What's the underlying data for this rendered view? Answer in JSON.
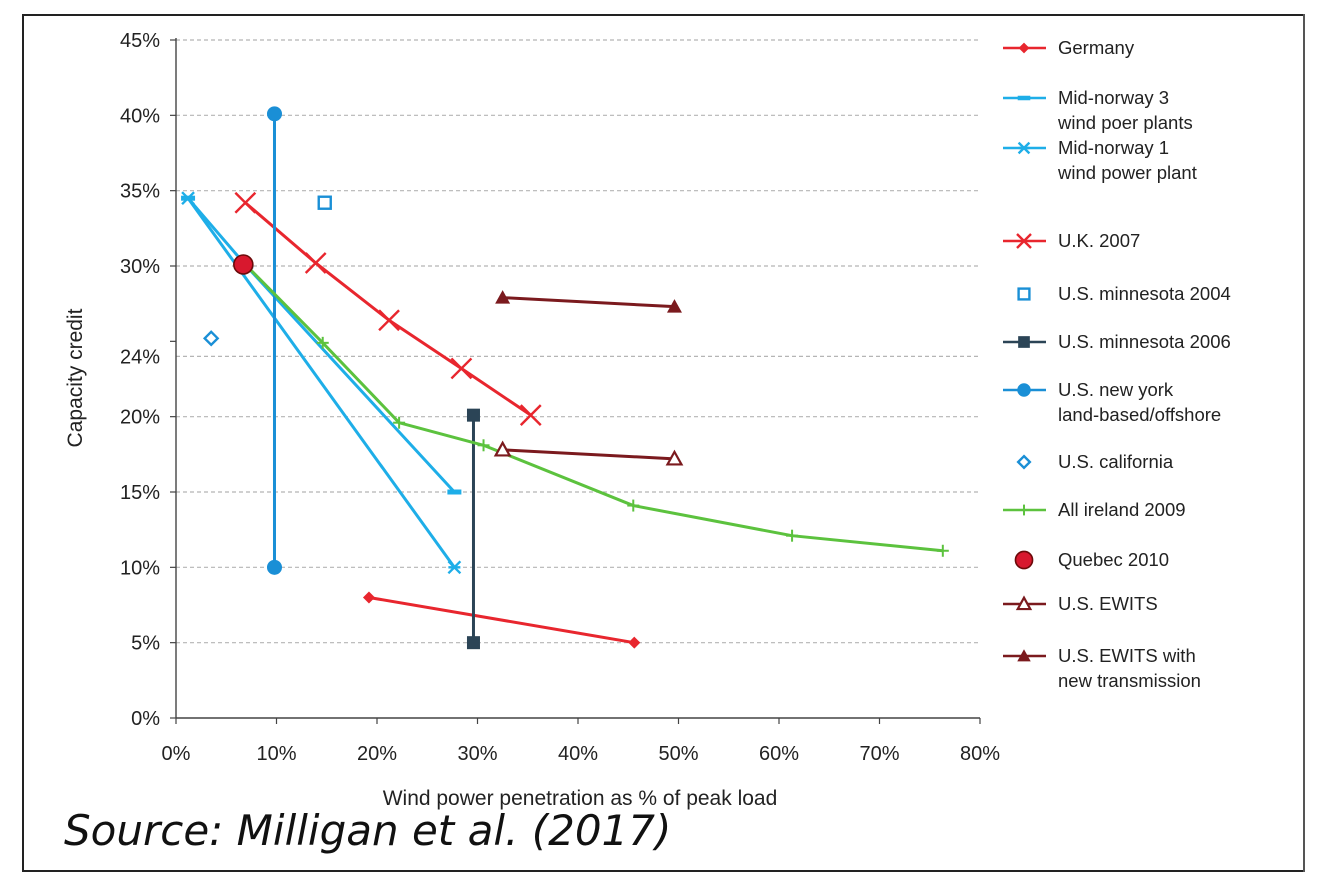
{
  "chart_data": {
    "type": "line",
    "xlabel": "Wind power penetration as % of peak load",
    "ylabel": "Capacity credit",
    "xlim": [
      0,
      80
    ],
    "ylim": [
      0,
      45
    ],
    "x_ticks": [
      0,
      10,
      20,
      30,
      40,
      50,
      60,
      70,
      80
    ],
    "x_tick_labels": [
      "0%",
      "10%",
      "20%",
      "30%",
      "40%",
      "50%",
      "60%",
      "70%",
      "80%"
    ],
    "y_ticks": [
      0,
      5,
      10,
      15,
      20,
      24,
      30,
      35,
      40,
      45
    ],
    "y_tick_labels": [
      "0%",
      "5%",
      "10%",
      "15%",
      "20%",
      "24%",
      "30%",
      "35%",
      "40%",
      "45%"
    ],
    "grid": "horizontal dashed",
    "legend_position": "right",
    "series": [
      {
        "name": "Germany",
        "color": "#e8262e",
        "marker": "diamond-filled",
        "line": true,
        "points": [
          [
            19.2,
            8.0
          ],
          [
            45.6,
            5.0
          ]
        ]
      },
      {
        "name": "Mid-norway 3\nwind poer plants",
        "color": "#1eaee8",
        "marker": "dash",
        "line": true,
        "points": [
          [
            1.2,
            34.5
          ],
          [
            7.0,
            30.0
          ],
          [
            27.7,
            15.0
          ]
        ]
      },
      {
        "name": "Mid-norway 1\nwind power plant",
        "color": "#1eaee8",
        "marker": "star",
        "line": true,
        "points": [
          [
            1.2,
            34.5
          ],
          [
            27.7,
            10.0
          ]
        ]
      },
      {
        "name": "U.K. 2007",
        "color": "#e8262e",
        "marker": "x",
        "line": true,
        "points": [
          [
            6.9,
            34.2
          ],
          [
            13.9,
            30.2
          ],
          [
            21.2,
            26.4
          ],
          [
            28.4,
            23.2
          ],
          [
            35.3,
            20.1
          ]
        ]
      },
      {
        "name": "U.S. minnesota 2004",
        "color": "#1a8fd6",
        "marker": "square-open",
        "line": false,
        "points": [
          [
            14.8,
            34.2
          ]
        ]
      },
      {
        "name": "U.S. minnesota 2006",
        "color": "#2b4456",
        "marker": "square-filled",
        "line": true,
        "points": [
          [
            29.6,
            20.1
          ],
          [
            29.6,
            5.0
          ]
        ]
      },
      {
        "name": "U.S. new york\nland-based/offshore",
        "color": "#1a8fd6",
        "marker": "circle-filled",
        "line": true,
        "points": [
          [
            9.8,
            40.1
          ],
          [
            9.8,
            10.0
          ]
        ]
      },
      {
        "name": "U.S. california",
        "color": "#1a8fd6",
        "marker": "diamond-open",
        "line": false,
        "points": [
          [
            3.5,
            25.2
          ]
        ]
      },
      {
        "name": "All ireland 2009",
        "color": "#5cc23e",
        "marker": "plus",
        "line": true,
        "points": [
          [
            6.9,
            30.1
          ],
          [
            14.6,
            24.9
          ],
          [
            22.2,
            19.6
          ],
          [
            30.6,
            18.1
          ],
          [
            45.5,
            14.1
          ],
          [
            61.3,
            12.1
          ],
          [
            76.3,
            11.1
          ]
        ]
      },
      {
        "name": "Quebec 2010",
        "color": "#d8182e",
        "marker": "circle-big",
        "line": false,
        "points": [
          [
            6.7,
            30.1
          ]
        ]
      },
      {
        "name": "U.S. EWITS",
        "color": "#7b1a1e",
        "marker": "triangle-open",
        "line": true,
        "points": [
          [
            32.5,
            17.8
          ],
          [
            49.6,
            17.2
          ]
        ]
      },
      {
        "name": "U.S. EWITS with\nnew transmission",
        "color": "#7b1a1e",
        "marker": "triangle-filled",
        "line": true,
        "points": [
          [
            32.5,
            27.9
          ],
          [
            49.6,
            27.3
          ]
        ]
      }
    ]
  },
  "source_caption": "Source: Milligan et al. (2017)"
}
